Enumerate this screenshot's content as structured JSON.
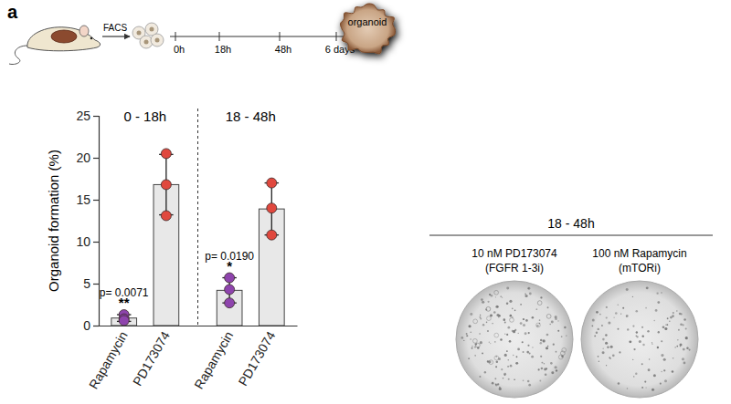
{
  "panel_label": "a",
  "schematic": {
    "sorting": "FACS",
    "timepoints": [
      "0h",
      "18h",
      "48h",
      "6 days"
    ],
    "result": "organoid"
  },
  "chart_data": {
    "type": "bar",
    "categories": [
      "Rapamycin",
      "PD173074",
      "Rapamycin",
      "PD173074"
    ],
    "category_groups": [
      "0 - 18h",
      "0 - 18h",
      "18 - 48h",
      "18 - 48h"
    ],
    "values": [
      0.9,
      16.8,
      4.2,
      13.9
    ],
    "errors": [
      0.4,
      3.6,
      1.5,
      3.1
    ],
    "points": {
      "values": [
        [
          1.3,
          0.8,
          0.6
        ],
        [
          20.5,
          16.8,
          13.1
        ],
        [
          5.7,
          4.3,
          2.7
        ],
        [
          17,
          14,
          10.8
        ]
      ],
      "colors": [
        "#8e44ad",
        "#e0483e",
        "#8e44ad",
        "#e0483e"
      ]
    },
    "color": "#e8e8e8",
    "ylabel": "Organoid formation (%)",
    "ylim": [
      0,
      25
    ],
    "yticks": [
      0,
      5,
      10,
      15,
      20,
      25
    ],
    "annotations": [
      {
        "category": 0,
        "texts": [
          "p= 0.0071",
          "**"
        ]
      },
      {
        "category": 2,
        "texts": [
          "p= 0.0190",
          "*"
        ]
      }
    ]
  },
  "wells": {
    "title": "18 - 48h",
    "items": [
      {
        "label": "10 nM PD173074",
        "note": "(FGFR 1-3i)"
      },
      {
        "label": "100 nM Rapamycin",
        "note": "(mTORi)"
      }
    ]
  }
}
